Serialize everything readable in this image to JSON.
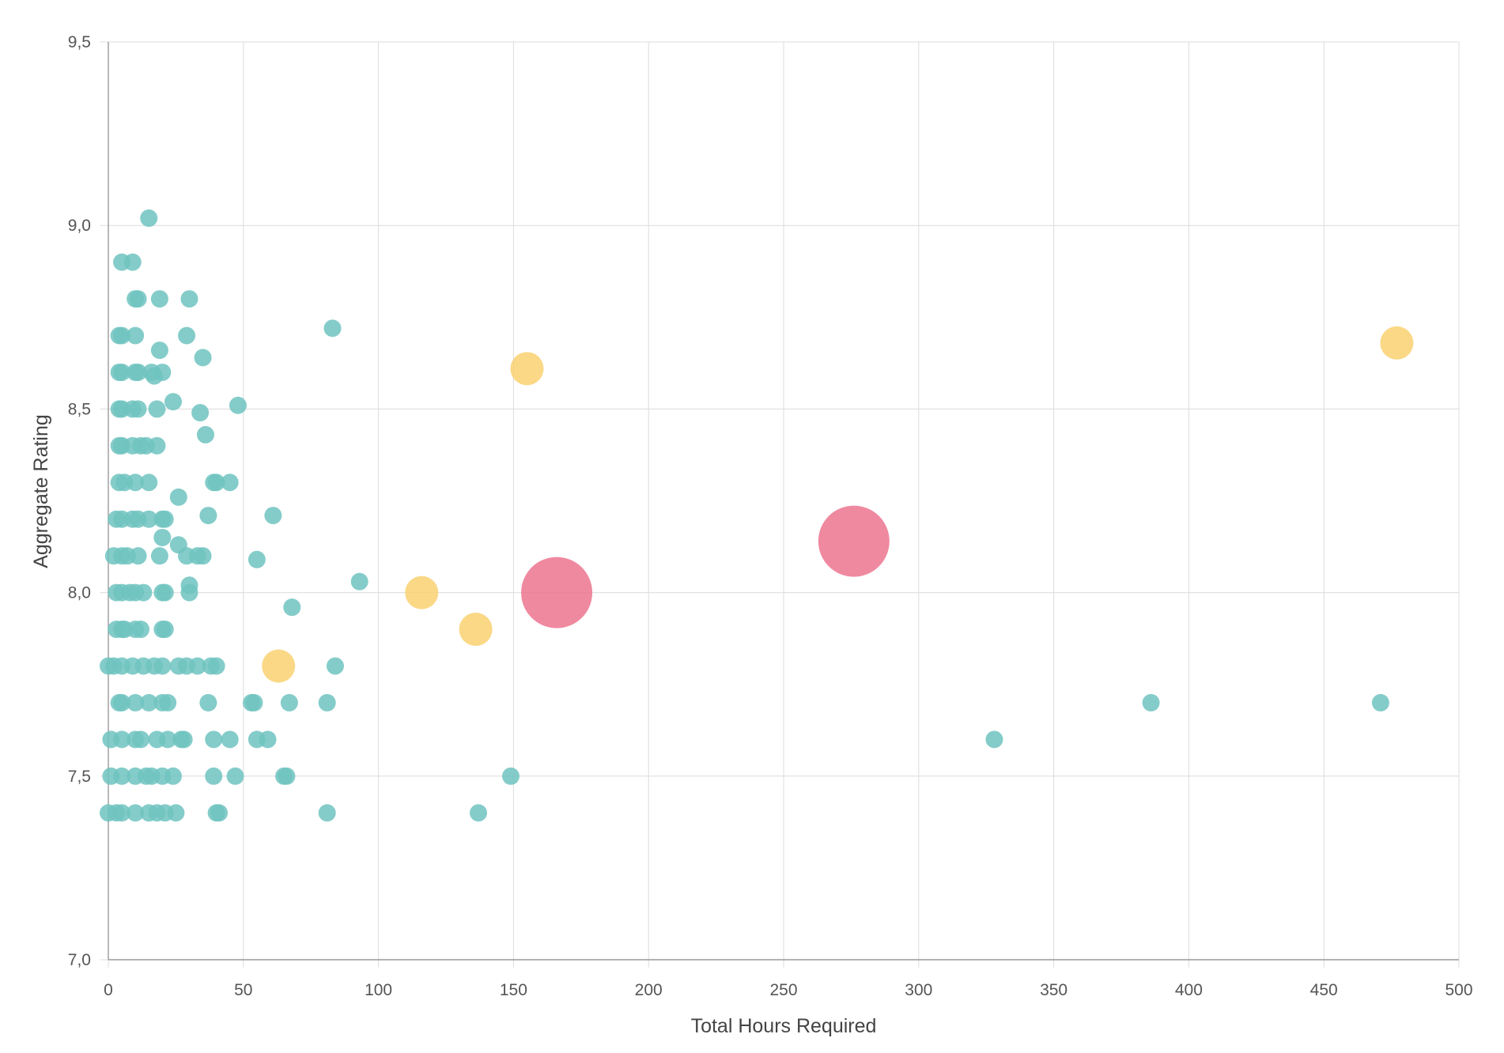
{
  "chart_data": {
    "type": "scatter",
    "title": "",
    "xlabel": "Total Hours Required",
    "ylabel": "Aggregate Rating",
    "xlim": [
      0,
      500
    ],
    "ylim": [
      7.0,
      9.5
    ],
    "x_ticks": [
      "0",
      "50",
      "100",
      "150",
      "200",
      "250",
      "300",
      "350",
      "400",
      "450",
      "500"
    ],
    "y_ticks": [
      "7,0",
      "7,5",
      "8,0",
      "8,5",
      "9,0",
      "9,5"
    ],
    "grid": true,
    "legend": "none",
    "colors": {
      "small": "#6fc3bf",
      "medium": "#f9cf6b",
      "large": "#ec6f8b"
    },
    "series": [
      {
        "size_class": "small",
        "points": [
          [
            15,
            9.02
          ],
          [
            5,
            8.9
          ],
          [
            9,
            8.9
          ],
          [
            10,
            8.8
          ],
          [
            11,
            8.8
          ],
          [
            19,
            8.8
          ],
          [
            30,
            8.8
          ],
          [
            83,
            8.72
          ],
          [
            4,
            8.7
          ],
          [
            5,
            8.7
          ],
          [
            10,
            8.7
          ],
          [
            29,
            8.7
          ],
          [
            19,
            8.66
          ],
          [
            35,
            8.64
          ],
          [
            4,
            8.6
          ],
          [
            5,
            8.6
          ],
          [
            10,
            8.6
          ],
          [
            11,
            8.6
          ],
          [
            16,
            8.6
          ],
          [
            20,
            8.6
          ],
          [
            17,
            8.59
          ],
          [
            24,
            8.52
          ],
          [
            48,
            8.51
          ],
          [
            4,
            8.5
          ],
          [
            5,
            8.5
          ],
          [
            9,
            8.5
          ],
          [
            11,
            8.5
          ],
          [
            18,
            8.5
          ],
          [
            34,
            8.49
          ],
          [
            36,
            8.43
          ],
          [
            4,
            8.4
          ],
          [
            5,
            8.4
          ],
          [
            9,
            8.4
          ],
          [
            12,
            8.4
          ],
          [
            14,
            8.4
          ],
          [
            18,
            8.4
          ],
          [
            4,
            8.3
          ],
          [
            6,
            8.3
          ],
          [
            10,
            8.3
          ],
          [
            15,
            8.3
          ],
          [
            39,
            8.3
          ],
          [
            40,
            8.3
          ],
          [
            45,
            8.3
          ],
          [
            26,
            8.26
          ],
          [
            61,
            8.21
          ],
          [
            37,
            8.21
          ],
          [
            3,
            8.2
          ],
          [
            5,
            8.2
          ],
          [
            9,
            8.2
          ],
          [
            11,
            8.2
          ],
          [
            15,
            8.2
          ],
          [
            20,
            8.2
          ],
          [
            21,
            8.2
          ],
          [
            20,
            8.15
          ],
          [
            26,
            8.13
          ],
          [
            2,
            8.1
          ],
          [
            5,
            8.1
          ],
          [
            7,
            8.1
          ],
          [
            11,
            8.1
          ],
          [
            19,
            8.1
          ],
          [
            29,
            8.1
          ],
          [
            33,
            8.1
          ],
          [
            35,
            8.1
          ],
          [
            55,
            8.09
          ],
          [
            93,
            8.03
          ],
          [
            30,
            8.02
          ],
          [
            3,
            8.0
          ],
          [
            5,
            8.0
          ],
          [
            8,
            8.0
          ],
          [
            10,
            8.0
          ],
          [
            13,
            8.0
          ],
          [
            20,
            8.0
          ],
          [
            21,
            8.0
          ],
          [
            30,
            8.0
          ],
          [
            68,
            7.96
          ],
          [
            3,
            7.9
          ],
          [
            5,
            7.9
          ],
          [
            6,
            7.9
          ],
          [
            10,
            7.9
          ],
          [
            12,
            7.9
          ],
          [
            20,
            7.9
          ],
          [
            21,
            7.9
          ],
          [
            0,
            7.8
          ],
          [
            2,
            7.8
          ],
          [
            5,
            7.8
          ],
          [
            9,
            7.8
          ],
          [
            13,
            7.8
          ],
          [
            17,
            7.8
          ],
          [
            20,
            7.8
          ],
          [
            26,
            7.8
          ],
          [
            29,
            7.8
          ],
          [
            33,
            7.8
          ],
          [
            38,
            7.8
          ],
          [
            40,
            7.8
          ],
          [
            84,
            7.8
          ],
          [
            4,
            7.7
          ],
          [
            5,
            7.7
          ],
          [
            10,
            7.7
          ],
          [
            15,
            7.7
          ],
          [
            20,
            7.7
          ],
          [
            22,
            7.7
          ],
          [
            37,
            7.7
          ],
          [
            53,
            7.7
          ],
          [
            54,
            7.7
          ],
          [
            67,
            7.7
          ],
          [
            81,
            7.7
          ],
          [
            386,
            7.7
          ],
          [
            471,
            7.7
          ],
          [
            1,
            7.6
          ],
          [
            5,
            7.6
          ],
          [
            10,
            7.6
          ],
          [
            12,
            7.6
          ],
          [
            18,
            7.6
          ],
          [
            22,
            7.6
          ],
          [
            27,
            7.6
          ],
          [
            28,
            7.6
          ],
          [
            39,
            7.6
          ],
          [
            45,
            7.6
          ],
          [
            55,
            7.6
          ],
          [
            59,
            7.6
          ],
          [
            328,
            7.6
          ],
          [
            1,
            7.5
          ],
          [
            5,
            7.5
          ],
          [
            10,
            7.5
          ],
          [
            14,
            7.5
          ],
          [
            16,
            7.5
          ],
          [
            20,
            7.5
          ],
          [
            24,
            7.5
          ],
          [
            39,
            7.5
          ],
          [
            47,
            7.5
          ],
          [
            65,
            7.5
          ],
          [
            66,
            7.5
          ],
          [
            149,
            7.5
          ],
          [
            0,
            7.4
          ],
          [
            3,
            7.4
          ],
          [
            5,
            7.4
          ],
          [
            10,
            7.4
          ],
          [
            15,
            7.4
          ],
          [
            18,
            7.4
          ],
          [
            21,
            7.4
          ],
          [
            25,
            7.4
          ],
          [
            40,
            7.4
          ],
          [
            41,
            7.4
          ],
          [
            81,
            7.4
          ],
          [
            137,
            7.4
          ]
        ]
      },
      {
        "size_class": "medium",
        "points": [
          [
            155,
            8.61
          ],
          [
            477,
            8.68
          ],
          [
            116,
            8.0
          ],
          [
            136,
            7.9
          ],
          [
            63,
            7.8
          ]
        ]
      },
      {
        "size_class": "large",
        "points": [
          [
            166,
            8.0
          ],
          [
            276,
            8.14
          ]
        ]
      }
    ]
  }
}
